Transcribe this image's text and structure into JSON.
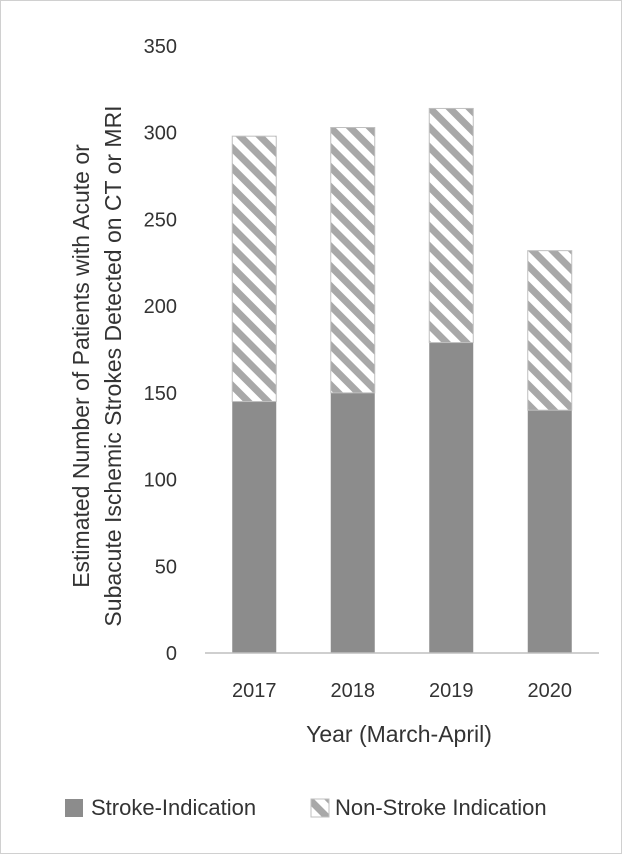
{
  "chart_data": {
    "type": "bar",
    "stacked": true,
    "categories": [
      "2017",
      "2018",
      "2019",
      "2020"
    ],
    "series": [
      {
        "name": "Stroke-Indication",
        "values": [
          145,
          150,
          179,
          140
        ],
        "color": "#8c8c8c",
        "pattern": "solid"
      },
      {
        "name": "Non-Stroke Indication",
        "values": [
          153,
          153,
          135,
          92
        ],
        "color": "#a6a6a6",
        "pattern": "diagonal-stripes"
      }
    ],
    "xlabel": "Year (March-April)",
    "ylabel_lines": [
      "Estimated Number of Patients with Acute or",
      "Subacute Ischemic Strokes Detected on CT or MRI"
    ],
    "ylim": [
      0,
      350
    ],
    "yticks": [
      0,
      50,
      100,
      150,
      200,
      250,
      300,
      350
    ],
    "grid": false,
    "legend_position": "bottom"
  }
}
